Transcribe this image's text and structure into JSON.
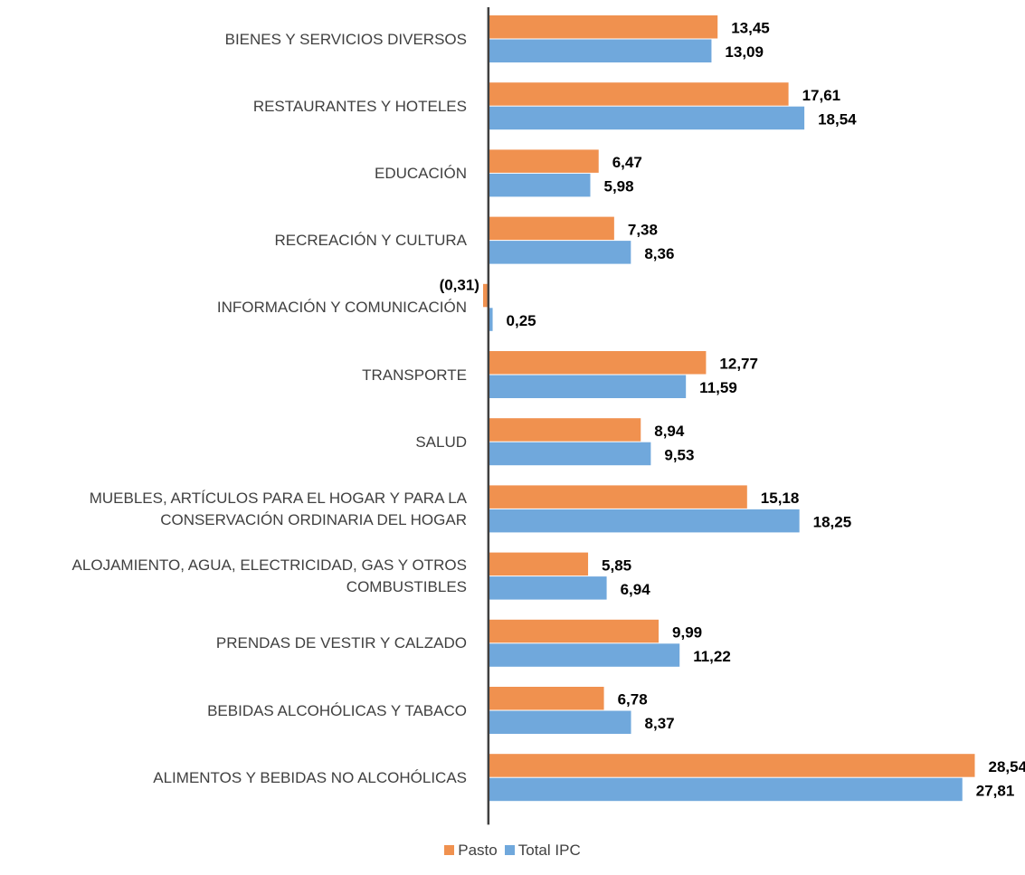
{
  "chart_data": {
    "type": "barh",
    "categories": [
      "BIENES Y SERVICIOS DIVERSOS",
      "RESTAURANTES Y HOTELES",
      "EDUCACIÓN",
      "RECREACIÓN Y CULTURA",
      "INFORMACIÓN Y COMUNICACIÓN",
      "TRANSPORTE",
      "SALUD",
      "MUEBLES, ARTÍCULOS PARA EL HOGAR Y PARA LA CONSERVACIÓN ORDINARIA DEL HOGAR",
      "ALOJAMIENTO, AGUA, ELECTRICIDAD, GAS Y OTROS COMBUSTIBLES",
      "PRENDAS DE VESTIR Y CALZADO",
      "BEBIDAS ALCOHÓLICAS Y TABACO",
      "ALIMENTOS Y BEBIDAS NO ALCOHÓLICAS"
    ],
    "series": [
      {
        "name": "Pasto",
        "color": "#f0914f",
        "values": [
          13.45,
          17.61,
          6.47,
          7.38,
          -0.31,
          12.77,
          8.94,
          15.18,
          5.85,
          9.99,
          6.78,
          28.54
        ],
        "value_labels": [
          "13,45",
          "17,61",
          "6,47",
          "7,38",
          "(0,31)",
          "12,77",
          "8,94",
          "15,18",
          "5,85",
          "9,99",
          "6,78",
          "28,54"
        ]
      },
      {
        "name": "Total IPC",
        "color": "#70a8dc",
        "values": [
          13.09,
          18.54,
          5.98,
          8.36,
          0.25,
          11.59,
          9.53,
          18.25,
          6.94,
          11.22,
          8.37,
          27.81
        ],
        "value_labels": [
          "13,09",
          "18,54",
          "5,98",
          "8,36",
          "0,25",
          "11,59",
          "9,53",
          "18,25",
          "6,94",
          "11,22",
          "8,37",
          "27,81"
        ]
      }
    ],
    "xlim": [
      -1,
      30
    ],
    "legend": "bottom"
  }
}
